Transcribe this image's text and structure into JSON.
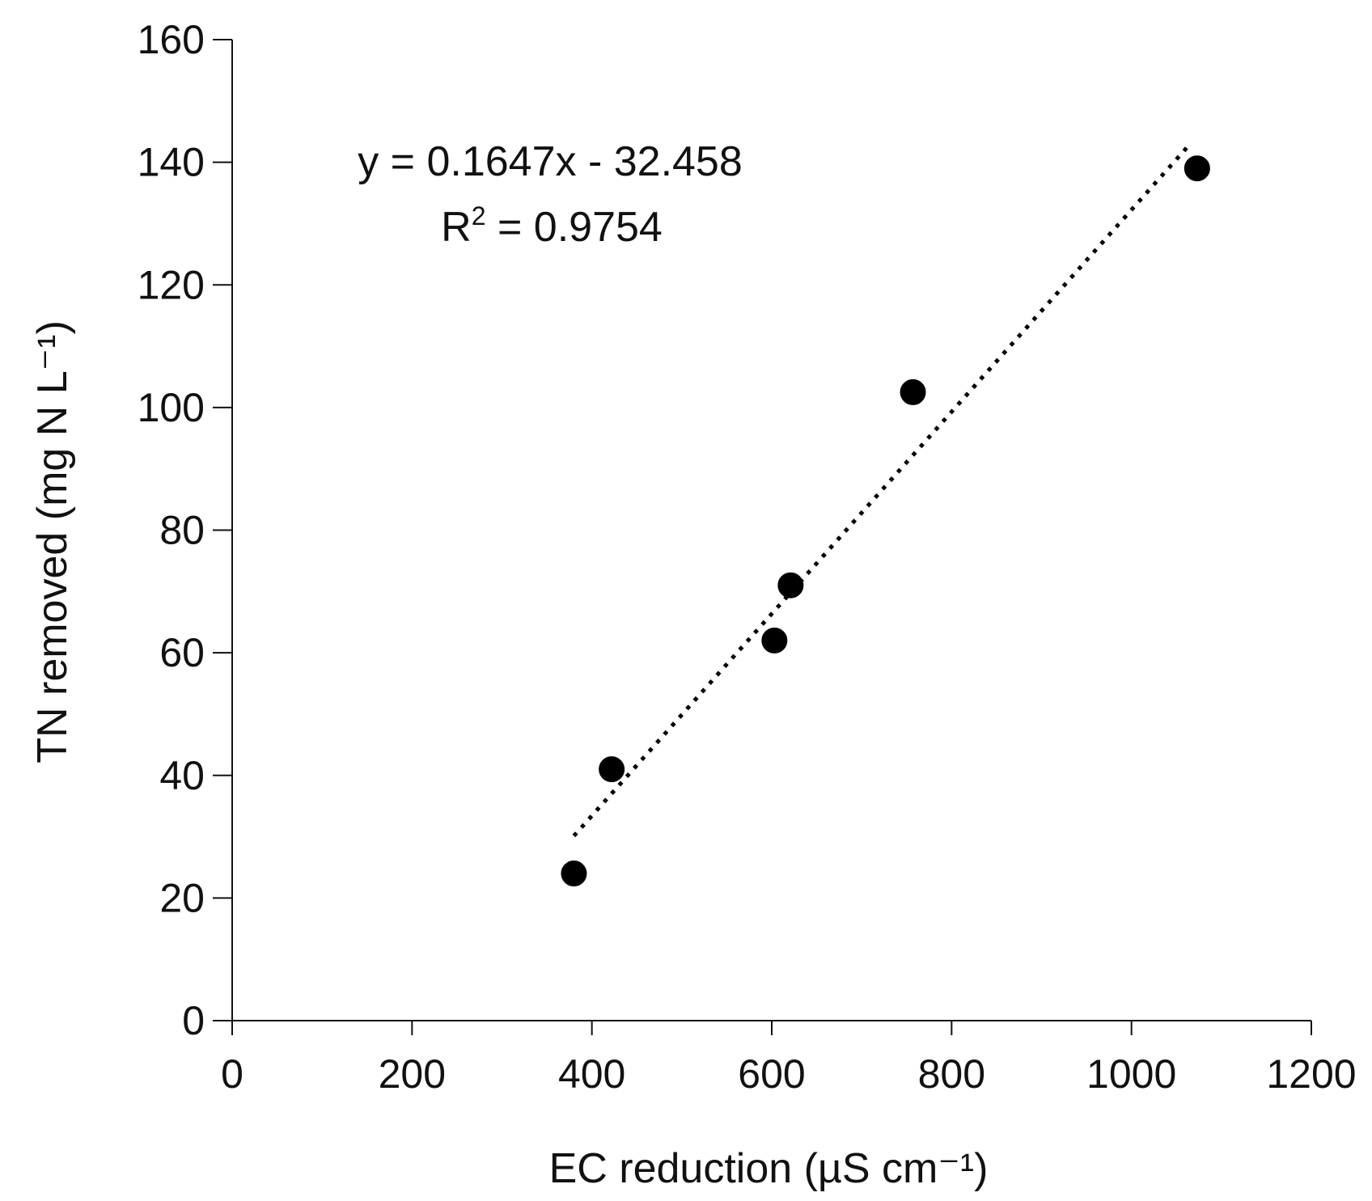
{
  "chart_data": {
    "type": "scatter",
    "xlabel": "EC reduction (µS cm⁻¹)",
    "ylabel": "TN removed (mg N L⁻¹)",
    "xlim": [
      0,
      1200
    ],
    "ylim": [
      0,
      160
    ],
    "xticks": [
      0,
      200,
      400,
      600,
      800,
      1000,
      1200
    ],
    "yticks": [
      0,
      20,
      40,
      60,
      80,
      100,
      120,
      140,
      160
    ],
    "grid": false,
    "series": [
      {
        "points": [
          {
            "x": 380,
            "y": 24
          },
          {
            "x": 422,
            "y": 41
          },
          {
            "x": 603,
            "y": 62
          },
          {
            "x": 621,
            "y": 71
          },
          {
            "x": 757,
            "y": 102.5
          },
          {
            "x": 1073,
            "y": 139
          }
        ],
        "color": "#000000"
      }
    ],
    "trendline": {
      "style": "dotted",
      "x_range": [
        380,
        1065
      ],
      "slope": 0.1647,
      "intercept": -32.458
    },
    "annotations": {
      "equation": "y = 0.1647x - 32.458",
      "r2_label": "R",
      "r2_superscript": "2",
      "r2_value": " = 0.9754"
    }
  }
}
